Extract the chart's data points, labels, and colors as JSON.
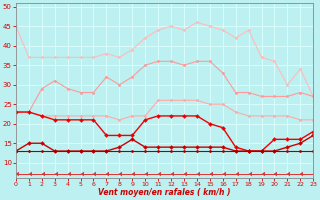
{
  "x": [
    0,
    1,
    2,
    3,
    4,
    5,
    6,
    7,
    8,
    9,
    10,
    11,
    12,
    13,
    14,
    15,
    16,
    17,
    18,
    19,
    20,
    21,
    22,
    23
  ],
  "series": [
    {
      "label": "lightest_pink",
      "color": "#ffbbbb",
      "marker": "D",
      "markersize": 1.5,
      "linewidth": 0.8,
      "values": [
        45,
        37,
        37,
        37,
        37,
        37,
        37,
        38,
        37,
        39,
        42,
        44,
        45,
        44,
        46,
        45,
        44,
        42,
        44,
        37,
        36,
        30,
        34,
        27
      ]
    },
    {
      "label": "medium_pink",
      "color": "#ff9999",
      "marker": "D",
      "markersize": 1.5,
      "linewidth": 0.8,
      "values": [
        23,
        23,
        29,
        31,
        29,
        28,
        28,
        32,
        30,
        32,
        35,
        36,
        36,
        35,
        36,
        36,
        33,
        28,
        28,
        27,
        27,
        27,
        28,
        27
      ]
    },
    {
      "label": "light_pink_flat",
      "color": "#ffaaaa",
      "marker": "D",
      "markersize": 1.5,
      "linewidth": 0.8,
      "values": [
        23,
        23,
        22,
        22,
        22,
        22,
        22,
        22,
        21,
        22,
        22,
        26,
        26,
        26,
        26,
        25,
        25,
        23,
        22,
        22,
        22,
        22,
        21,
        21
      ]
    },
    {
      "label": "red_main",
      "color": "#ee0000",
      "marker": "D",
      "markersize": 2.0,
      "linewidth": 1.0,
      "values": [
        23,
        23,
        22,
        21,
        21,
        21,
        21,
        17,
        17,
        17,
        21,
        22,
        22,
        22,
        22,
        20,
        19,
        14,
        13,
        13,
        16,
        16,
        16,
        18
      ]
    },
    {
      "label": "red_lower1",
      "color": "#cc0000",
      "marker": "D",
      "markersize": 2.0,
      "linewidth": 1.0,
      "values": [
        13,
        15,
        15,
        13,
        13,
        13,
        13,
        13,
        14,
        16,
        14,
        14,
        14,
        14,
        14,
        14,
        14,
        13,
        13,
        13,
        13,
        14,
        15,
        17
      ]
    },
    {
      "label": "dark_red_flat",
      "color": "#990000",
      "marker": "D",
      "markersize": 1.5,
      "linewidth": 0.8,
      "values": [
        13,
        13,
        13,
        13,
        13,
        13,
        13,
        13,
        13,
        13,
        13,
        13,
        13,
        13,
        13,
        13,
        13,
        13,
        13,
        13,
        13,
        13,
        13,
        13
      ]
    },
    {
      "label": "arrow_line",
      "color": "#dd3333",
      "marker": 4,
      "markersize": 3,
      "linewidth": 0.7,
      "values": [
        7,
        7,
        7,
        7,
        7,
        7,
        7,
        7,
        7,
        7,
        7,
        7,
        7,
        7,
        7,
        7,
        7,
        7,
        7,
        7,
        7,
        7,
        7,
        7
      ]
    }
  ],
  "xlim": [
    0,
    23
  ],
  "ylim": [
    6,
    51
  ],
  "yticks": [
    10,
    15,
    20,
    25,
    30,
    35,
    40,
    45,
    50
  ],
  "xticks": [
    0,
    1,
    2,
    3,
    4,
    5,
    6,
    7,
    8,
    9,
    10,
    11,
    12,
    13,
    14,
    15,
    16,
    17,
    18,
    19,
    20,
    21,
    22,
    23
  ],
  "xlabel": "Vent moyen/en rafales ( km/h )",
  "background_color": "#bdf0f0",
  "grid_color": "#ddffff",
  "tick_color": "#dd0000",
  "label_color": "#cc0000",
  "axis_color": "#888888"
}
